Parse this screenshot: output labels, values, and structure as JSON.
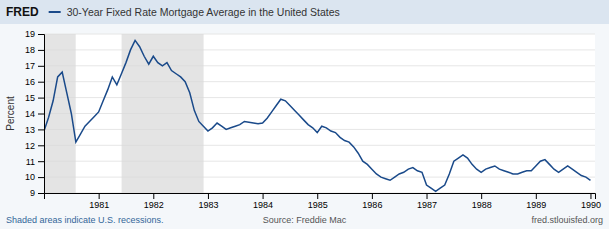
{
  "chart_data": {
    "type": "line",
    "title": "30-Year Fixed Rate Mortgage Average in the United States",
    "ylabel": "Percent",
    "annotations": [
      "FRED",
      "Shaded areas indicate U.S. recessions.",
      "Source: Freddie Mac",
      "fred.stlouisfed.org"
    ],
    "color": "#1a4a8a",
    "x": [
      1980.0,
      1980.083,
      1980.167,
      1980.25,
      1980.333,
      1980.417,
      1980.5,
      1980.583,
      1980.667,
      1980.75,
      1980.833,
      1980.917,
      1981.0,
      1981.083,
      1981.167,
      1981.25,
      1981.333,
      1981.417,
      1981.5,
      1981.583,
      1981.667,
      1981.75,
      1981.833,
      1981.917,
      1982.0,
      1982.083,
      1982.167,
      1982.25,
      1982.333,
      1982.417,
      1982.5,
      1982.583,
      1982.667,
      1982.75,
      1982.833,
      1982.917,
      1983.0,
      1983.083,
      1983.167,
      1983.25,
      1983.333,
      1983.417,
      1983.5,
      1983.583,
      1983.667,
      1983.75,
      1983.833,
      1983.917,
      1984.0,
      1984.083,
      1984.167,
      1984.25,
      1984.333,
      1984.417,
      1984.5,
      1984.583,
      1984.667,
      1984.75,
      1984.833,
      1984.917,
      1985.0,
      1985.083,
      1985.167,
      1985.25,
      1985.333,
      1985.417,
      1985.5,
      1985.583,
      1985.667,
      1985.75,
      1985.833,
      1985.917,
      1986.0,
      1986.083,
      1986.167,
      1986.25,
      1986.333,
      1986.417,
      1986.5,
      1986.583,
      1986.667,
      1986.75,
      1986.833,
      1986.917,
      1987.0,
      1987.083,
      1987.167,
      1987.25,
      1987.333,
      1987.417,
      1987.5,
      1987.583,
      1987.667,
      1987.75,
      1987.833,
      1987.917,
      1988.0,
      1988.083,
      1988.167,
      1988.25,
      1988.333,
      1988.417,
      1988.5,
      1988.583,
      1988.667,
      1988.75,
      1988.833,
      1988.917,
      1989.0,
      1989.083,
      1989.167,
      1989.25,
      1989.333,
      1989.417,
      1989.5,
      1989.583,
      1989.667,
      1989.75,
      1989.833,
      1989.917,
      1990.0
    ],
    "values": [
      12.9,
      13.75,
      14.8,
      16.3,
      16.6,
      15.3,
      14.0,
      12.2,
      12.7,
      13.2,
      13.5,
      13.8,
      14.1,
      14.8,
      15.5,
      16.3,
      15.8,
      16.5,
      17.2,
      18.0,
      18.6,
      18.2,
      17.6,
      17.1,
      17.6,
      17.2,
      17.0,
      17.2,
      16.7,
      16.5,
      16.3,
      16.0,
      15.3,
      14.2,
      13.5,
      13.2,
      12.9,
      13.1,
      13.4,
      13.2,
      13.0,
      13.1,
      13.2,
      13.3,
      13.5,
      13.45,
      13.4,
      13.35,
      13.4,
      13.7,
      14.1,
      14.5,
      14.9,
      14.8,
      14.5,
      14.2,
      13.9,
      13.6,
      13.3,
      13.1,
      12.8,
      13.2,
      13.1,
      12.9,
      12.8,
      12.5,
      12.3,
      12.2,
      11.9,
      11.5,
      11.0,
      10.8,
      10.5,
      10.2,
      10.0,
      9.9,
      9.8,
      10.0,
      10.2,
      10.3,
      10.5,
      10.6,
      10.4,
      10.3,
      9.5,
      9.3,
      9.1,
      9.3,
      9.5,
      10.2,
      11.0,
      11.2,
      11.4,
      11.2,
      10.8,
      10.5,
      10.3,
      10.5,
      10.6,
      10.7,
      10.5,
      10.4,
      10.3,
      10.2,
      10.2,
      10.3,
      10.4,
      10.4,
      10.7,
      11.0,
      11.1,
      10.8,
      10.5,
      10.3,
      10.5,
      10.7,
      10.5,
      10.3,
      10.1,
      10.0,
      9.8
    ],
    "recession_bands": [
      [
        1980.0,
        1980.58
      ],
      [
        1981.42,
        1982.92
      ]
    ],
    "xlim": [
      1980.0,
      1990.083
    ],
    "xticks": [
      1981,
      1982,
      1983,
      1984,
      1985,
      1986,
      1987,
      1988,
      1989,
      1990
    ],
    "ylim": [
      9,
      19
    ],
    "yticks": [
      9,
      10,
      11,
      12,
      13,
      14,
      15,
      16,
      17,
      18,
      19
    ],
    "grid": true
  }
}
